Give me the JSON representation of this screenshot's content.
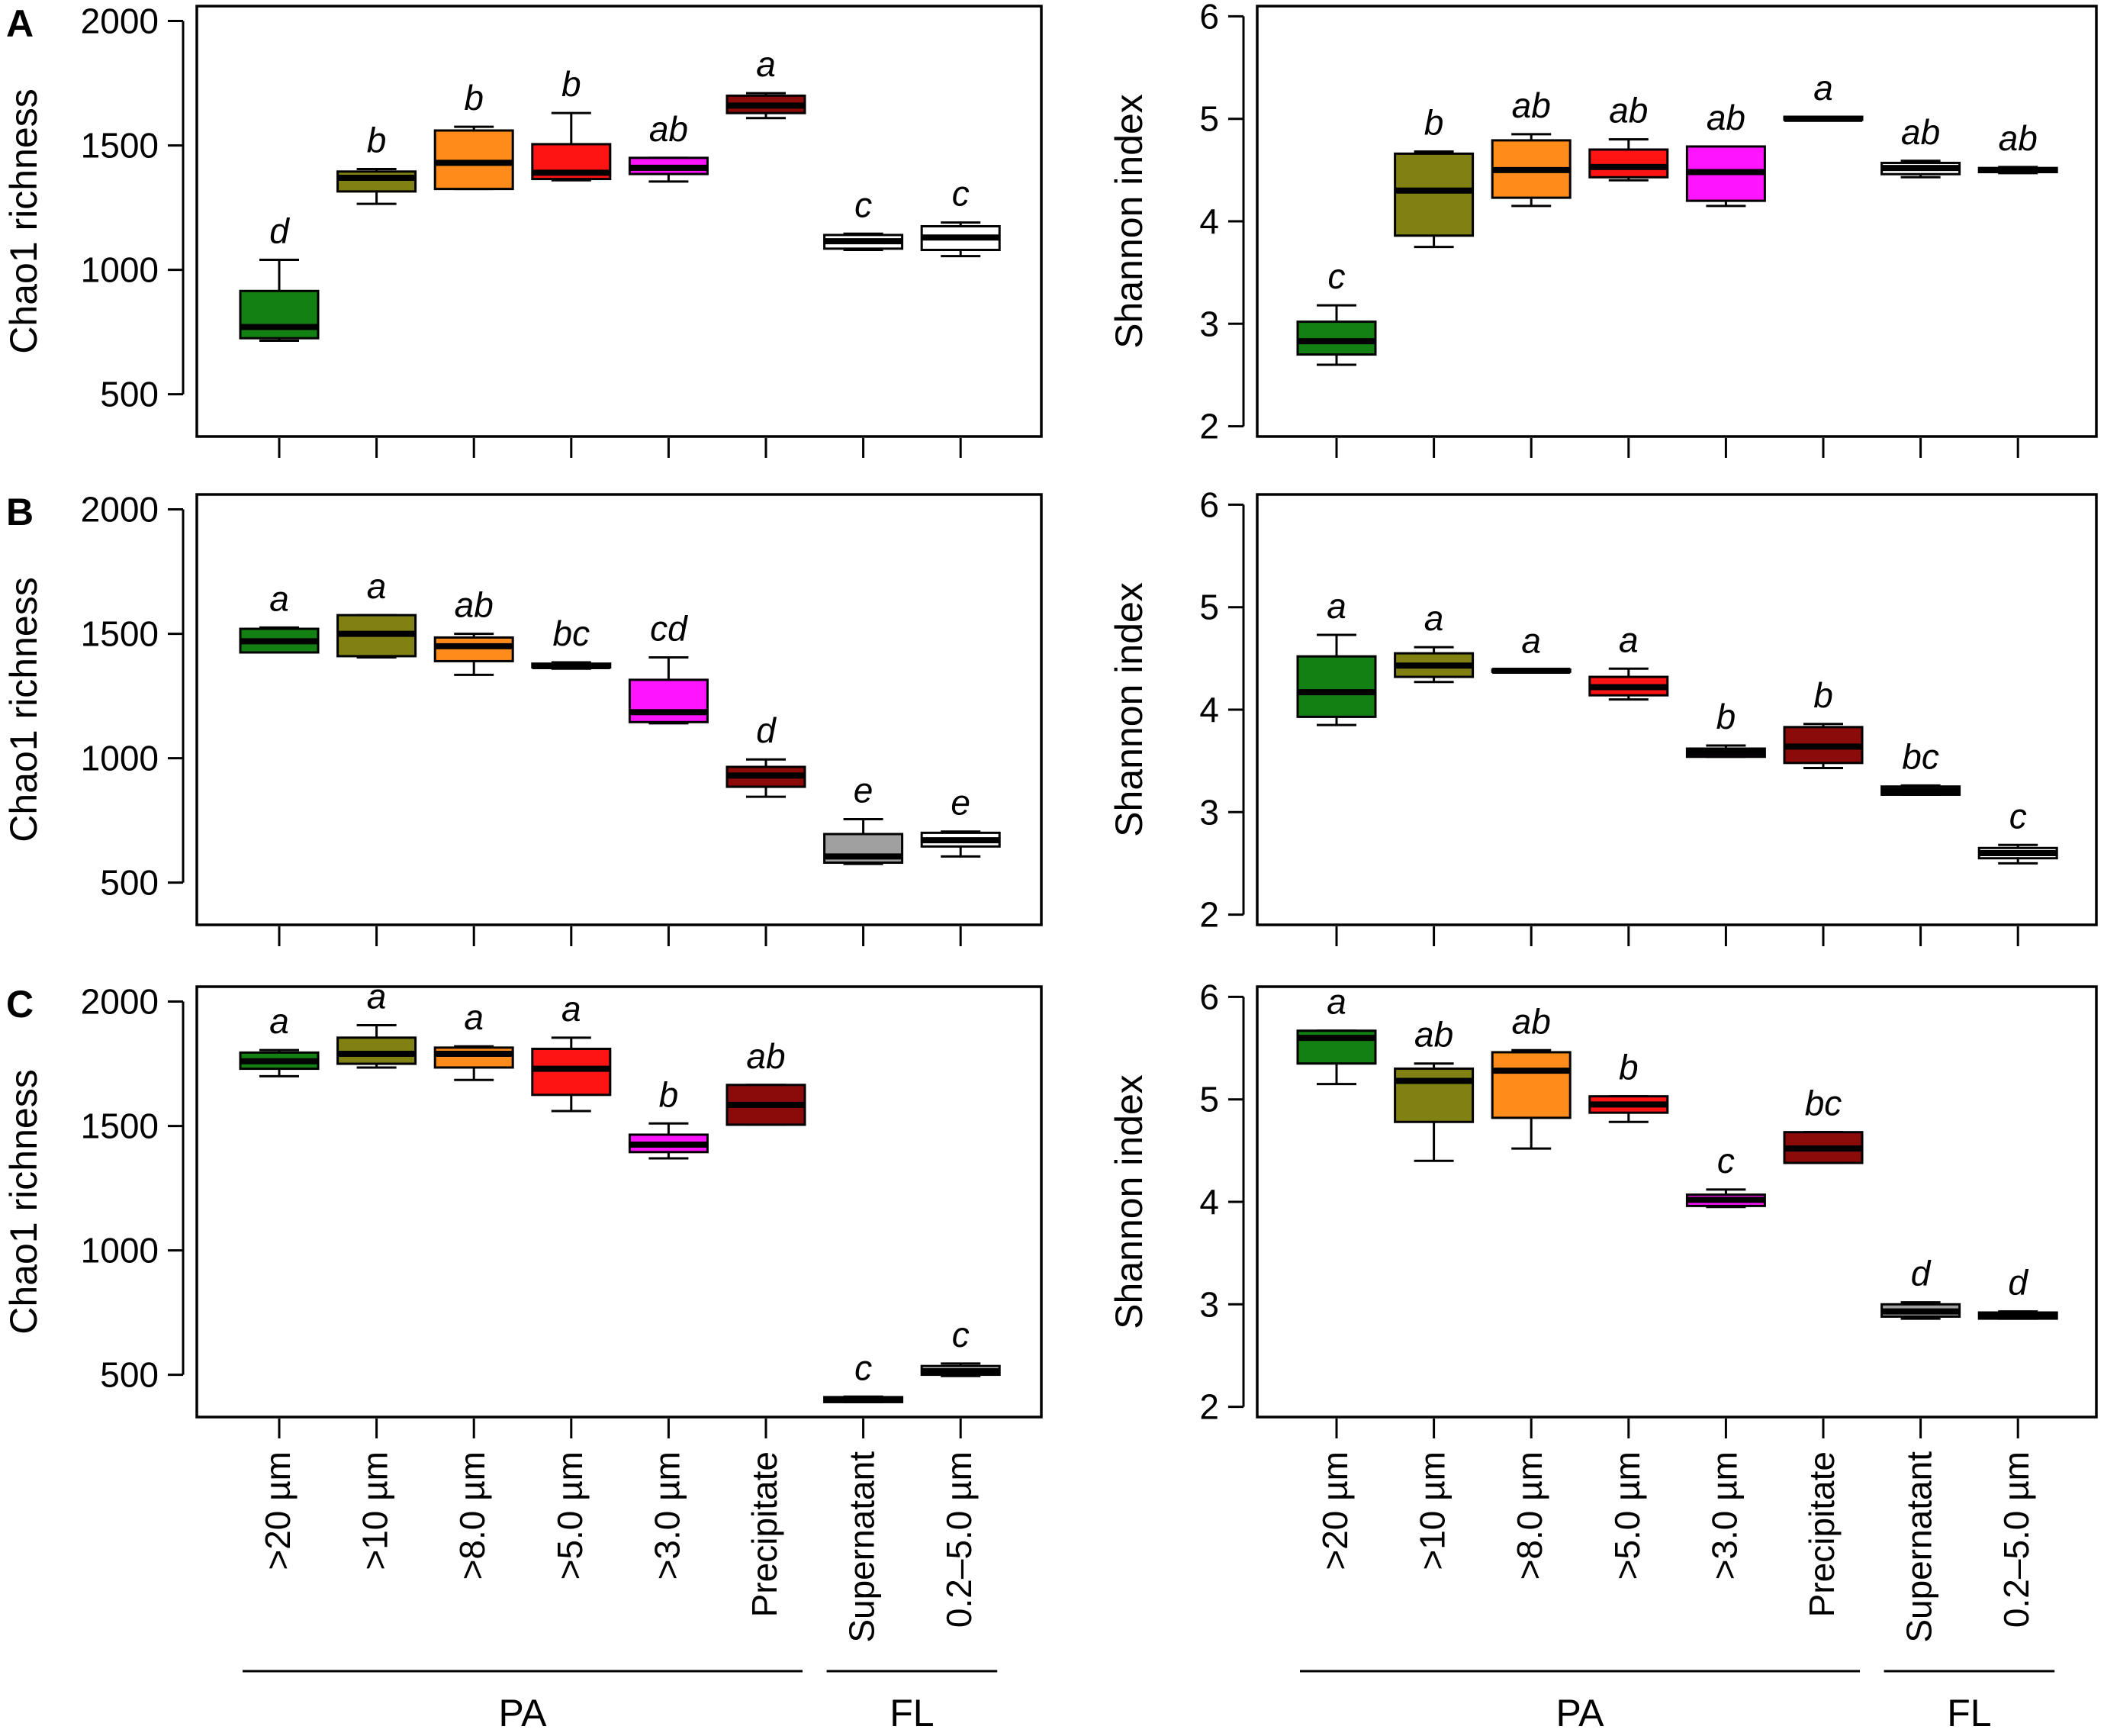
{
  "chart_data": {
    "categories": [
      ">20 µm",
      ">10 µm",
      ">8.0 µm",
      ">5.0 µm",
      ">3.0 µm",
      "Precipitate",
      "Supernatant",
      "0.2–5.0 µm"
    ],
    "colors": [
      "#138013",
      "#808013",
      "#ff8c1a",
      "#ff1414",
      "#ff14ff",
      "#8b0b0b",
      "#a0a0a0",
      "#ffffff"
    ],
    "groups": [
      {
        "label": "PA",
        "from": 0,
        "to": 5
      },
      {
        "label": "FL",
        "from": 6,
        "to": 7
      }
    ],
    "panels": [
      {
        "letter": "A",
        "metric": "chao",
        "type": "box",
        "ylabel": "Chao1 richness",
        "ylim": [
          330,
          2060
        ],
        "yticks": [
          500,
          1000,
          1500,
          2000
        ],
        "colors": [
          "#138013",
          "#808013",
          "#ff8c1a",
          "#ff1414",
          "#ff14ff",
          "#8b0b0b",
          "#ffffff",
          "#ffffff"
        ],
        "boxes": [
          {
            "min": 715,
            "q1": 725,
            "med": 770,
            "q3": 915,
            "max": 1040
          },
          {
            "min": 1265,
            "q1": 1315,
            "med": 1370,
            "q3": 1395,
            "max": 1405
          },
          {
            "min": 1325,
            "q1": 1325,
            "med": 1430,
            "q3": 1560,
            "max": 1575
          },
          {
            "min": 1360,
            "q1": 1365,
            "med": 1390,
            "q3": 1505,
            "max": 1630
          },
          {
            "min": 1355,
            "q1": 1385,
            "med": 1410,
            "q3": 1450,
            "max": 1450
          },
          {
            "min": 1610,
            "q1": 1630,
            "med": 1660,
            "q3": 1700,
            "max": 1710
          },
          {
            "min": 1080,
            "q1": 1085,
            "med": 1115,
            "q3": 1140,
            "max": 1145
          },
          {
            "min": 1055,
            "q1": 1080,
            "med": 1130,
            "q3": 1175,
            "max": 1190
          }
        ],
        "letters": [
          "d",
          "b",
          "b",
          "b",
          "ab",
          "a",
          "c",
          "c"
        ]
      },
      {
        "letter": "",
        "metric": "shannon",
        "type": "box",
        "ylabel": "Shannon index",
        "ylim": [
          1.9,
          6.1
        ],
        "yticks": [
          2,
          3,
          4,
          5,
          6
        ],
        "colors": [
          "#138013",
          "#808013",
          "#ff8c1a",
          "#ff1414",
          "#ff14ff",
          "#8b0b0b",
          "#ffffff",
          "#ffffff"
        ],
        "boxes": [
          {
            "min": 2.6,
            "q1": 2.7,
            "med": 2.83,
            "q3": 3.02,
            "max": 3.18
          },
          {
            "min": 3.75,
            "q1": 3.86,
            "med": 4.3,
            "q3": 4.66,
            "max": 4.68
          },
          {
            "min": 4.15,
            "q1": 4.23,
            "med": 4.5,
            "q3": 4.79,
            "max": 4.85
          },
          {
            "min": 4.4,
            "q1": 4.43,
            "med": 4.53,
            "q3": 4.7,
            "max": 4.8
          },
          {
            "min": 4.15,
            "q1": 4.2,
            "med": 4.48,
            "q3": 4.73,
            "max": 4.73
          },
          {
            "min": 4.99,
            "q1": 4.99,
            "med": 5.0,
            "q3": 5.02,
            "max": 5.02
          },
          {
            "min": 4.43,
            "q1": 4.46,
            "med": 4.52,
            "q3": 4.57,
            "max": 4.59
          },
          {
            "min": 4.47,
            "q1": 4.48,
            "med": 4.5,
            "q3": 4.52,
            "max": 4.53
          }
        ],
        "letters": [
          "c",
          "b",
          "ab",
          "ab",
          "ab",
          "a",
          "ab",
          "ab"
        ]
      },
      {
        "letter": "B",
        "metric": "chao",
        "type": "box",
        "ylabel": "Chao1 richness",
        "ylim": [
          330,
          2060
        ],
        "yticks": [
          500,
          1000,
          1500,
          2000
        ],
        "colors": [
          "#138013",
          "#808013",
          "#ff8c1a",
          "#ff1414",
          "#ff14ff",
          "#8b0b0b",
          "#a0a0a0",
          "#ffffff"
        ],
        "boxes": [
          {
            "min": 1425,
            "q1": 1425,
            "med": 1470,
            "q3": 1520,
            "max": 1525
          },
          {
            "min": 1405,
            "q1": 1410,
            "med": 1500,
            "q3": 1575,
            "max": 1575
          },
          {
            "min": 1335,
            "q1": 1390,
            "med": 1450,
            "q3": 1485,
            "max": 1500
          },
          {
            "min": 1360,
            "q1": 1365,
            "med": 1370,
            "q3": 1380,
            "max": 1385
          },
          {
            "min": 1140,
            "q1": 1145,
            "med": 1185,
            "q3": 1315,
            "max": 1405
          },
          {
            "min": 845,
            "q1": 885,
            "med": 930,
            "q3": 965,
            "max": 995
          },
          {
            "min": 575,
            "q1": 580,
            "med": 605,
            "q3": 695,
            "max": 755
          },
          {
            "min": 605,
            "q1": 645,
            "med": 670,
            "q3": 700,
            "max": 705
          }
        ],
        "letters": [
          "a",
          "a",
          "ab",
          "bc",
          "cd",
          "d",
          "e",
          "e"
        ]
      },
      {
        "letter": "",
        "metric": "shannon",
        "type": "box",
        "ylabel": "Shannon index",
        "ylim": [
          1.9,
          6.1
        ],
        "yticks": [
          2,
          3,
          4,
          5,
          6
        ],
        "colors": [
          "#138013",
          "#808013",
          "#ff8c1a",
          "#ff1414",
          "#ff14ff",
          "#8b0b0b",
          "#a0a0a0",
          "#ffffff"
        ],
        "boxes": [
          {
            "min": 3.85,
            "q1": 3.93,
            "med": 4.17,
            "q3": 4.52,
            "max": 4.73
          },
          {
            "min": 4.27,
            "q1": 4.32,
            "med": 4.43,
            "q3": 4.55,
            "max": 4.61
          },
          {
            "min": 4.37,
            "q1": 4.37,
            "med": 4.38,
            "q3": 4.39,
            "max": 4.39
          },
          {
            "min": 4.1,
            "q1": 4.14,
            "med": 4.22,
            "q3": 4.32,
            "max": 4.4
          },
          {
            "min": 3.54,
            "q1": 3.54,
            "med": 3.58,
            "q3": 3.62,
            "max": 3.65
          },
          {
            "min": 3.43,
            "q1": 3.48,
            "med": 3.64,
            "q3": 3.83,
            "max": 3.86
          },
          {
            "min": 3.17,
            "q1": 3.17,
            "med": 3.21,
            "q3": 3.25,
            "max": 3.26
          },
          {
            "min": 2.5,
            "q1": 2.55,
            "med": 2.6,
            "q3": 2.65,
            "max": 2.68
          }
        ],
        "letters": [
          "a",
          "a",
          "a",
          "a",
          "b",
          "b",
          "bc",
          "c"
        ]
      },
      {
        "letter": "C",
        "metric": "chao",
        "type": "box",
        "ylabel": "Chao1 richness",
        "ylim": [
          330,
          2060
        ],
        "yticks": [
          500,
          1000,
          1500,
          2000
        ],
        "colors": [
          "#138013",
          "#808013",
          "#ff8c1a",
          "#ff1414",
          "#ff14ff",
          "#8b0b0b",
          "#a0a0a0",
          "#ffffff"
        ],
        "boxes": [
          {
            "min": 1700,
            "q1": 1730,
            "med": 1760,
            "q3": 1795,
            "max": 1805
          },
          {
            "min": 1735,
            "q1": 1750,
            "med": 1790,
            "q3": 1855,
            "max": 1905
          },
          {
            "min": 1685,
            "q1": 1735,
            "med": 1790,
            "q3": 1815,
            "max": 1820
          },
          {
            "min": 1560,
            "q1": 1625,
            "med": 1730,
            "q3": 1810,
            "max": 1855
          },
          {
            "min": 1370,
            "q1": 1395,
            "med": 1425,
            "q3": 1465,
            "max": 1510
          },
          {
            "min": 1505,
            "q1": 1505,
            "med": 1585,
            "q3": 1665,
            "max": 1665
          },
          {
            "min": 390,
            "q1": 390,
            "med": 400,
            "q3": 410,
            "max": 412
          },
          {
            "min": 495,
            "q1": 500,
            "med": 515,
            "q3": 535,
            "max": 545
          }
        ],
        "letters": [
          "a",
          "a",
          "a",
          "a",
          "b",
          "ab",
          "c",
          "c"
        ]
      },
      {
        "letter": "",
        "metric": "shannon",
        "type": "box",
        "ylabel": "Shannon index",
        "ylim": [
          1.9,
          6.1
        ],
        "yticks": [
          2,
          3,
          4,
          5,
          6
        ],
        "colors": [
          "#138013",
          "#808013",
          "#ff8c1a",
          "#ff1414",
          "#ff14ff",
          "#8b0b0b",
          "#a0a0a0",
          "#ffffff"
        ],
        "boxes": [
          {
            "min": 5.15,
            "q1": 5.35,
            "med": 5.6,
            "q3": 5.67,
            "max": 5.67
          },
          {
            "min": 4.4,
            "q1": 4.78,
            "med": 5.18,
            "q3": 5.3,
            "max": 5.35
          },
          {
            "min": 4.52,
            "q1": 4.82,
            "med": 5.28,
            "q3": 5.46,
            "max": 5.48
          },
          {
            "min": 4.78,
            "q1": 4.87,
            "med": 4.95,
            "q3": 5.03,
            "max": 5.03
          },
          {
            "min": 3.95,
            "q1": 3.96,
            "med": 4.02,
            "q3": 4.07,
            "max": 4.12
          },
          {
            "min": 4.38,
            "q1": 4.38,
            "med": 4.52,
            "q3": 4.68,
            "max": 4.68
          },
          {
            "min": 2.86,
            "q1": 2.88,
            "med": 2.93,
            "q3": 3.0,
            "max": 3.02
          },
          {
            "min": 2.86,
            "q1": 2.86,
            "med": 2.88,
            "q3": 2.92,
            "max": 2.93
          }
        ],
        "letters": [
          "a",
          "ab",
          "ab",
          "b",
          "c",
          "bc",
          "d",
          "d"
        ]
      }
    ]
  }
}
